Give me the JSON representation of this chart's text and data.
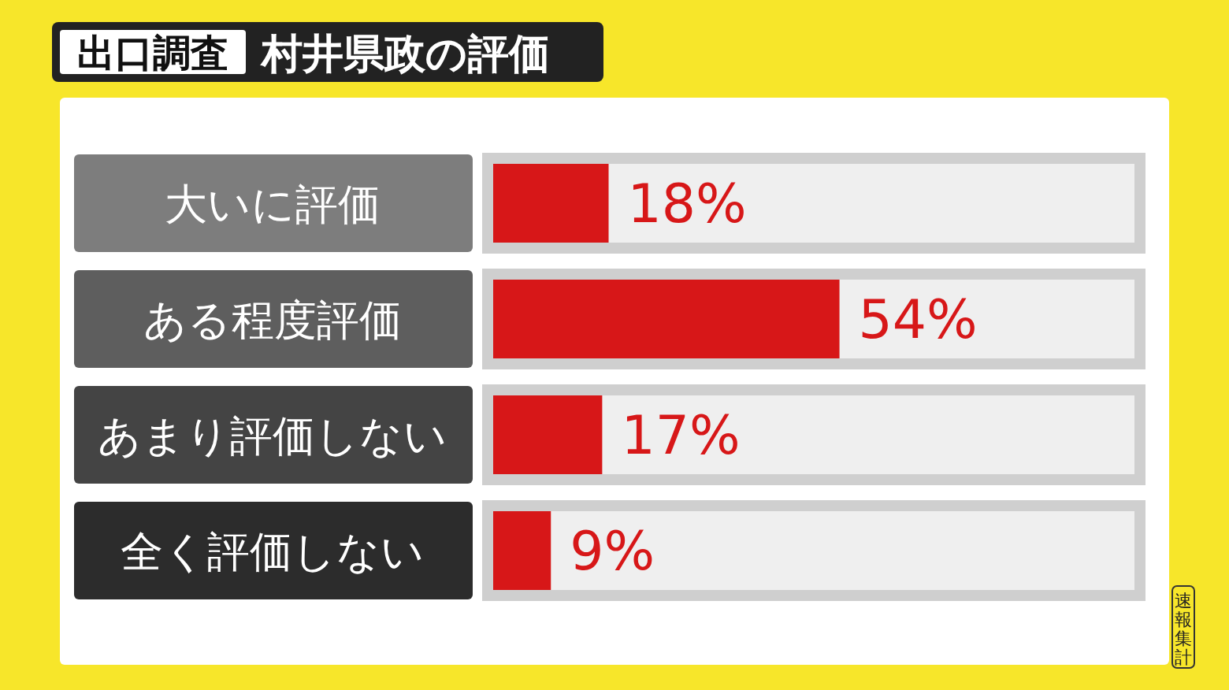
{
  "chart_data": {
    "type": "bar",
    "orientation": "horizontal",
    "subtitle": "出口調査",
    "title": "村井県政の評価",
    "categories": [
      "大いに評価",
      "ある程度評価",
      "あまり評価しない",
      "全く評価しない"
    ],
    "values": [
      18,
      54,
      17,
      9
    ],
    "value_labels": [
      "18%",
      "54%",
      "17%",
      "9%"
    ],
    "color": "#d71718",
    "xlim": [
      0,
      100
    ],
    "annotations": [
      "速報集計"
    ]
  }
}
